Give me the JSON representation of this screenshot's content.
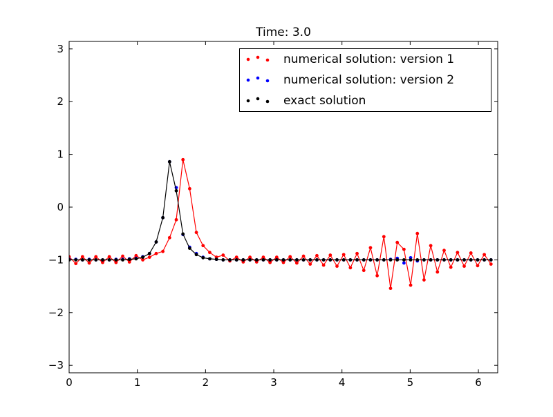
{
  "chart_data": {
    "type": "line",
    "title": "Time:  3.0",
    "xlabel": "",
    "ylabel": "",
    "xlim": [
      0,
      6.2832
    ],
    "ylim": [
      -3.1416,
      3.1416
    ],
    "grid": false,
    "legend_position": "top-right",
    "x_ticks": [
      0,
      1,
      2,
      3,
      4,
      5,
      6
    ],
    "x_tick_labels": [
      "0",
      "1",
      "2",
      "3",
      "4",
      "5",
      "6"
    ],
    "y_ticks": [
      -3,
      -2,
      -1,
      0,
      1,
      2,
      3
    ],
    "y_tick_labels": [
      "−3",
      "−2",
      "−1",
      "0",
      "1",
      "2",
      "3"
    ],
    "x": [
      0.0,
      0.0982,
      0.1963,
      0.2945,
      0.3927,
      0.4909,
      0.589,
      0.6872,
      0.7854,
      0.8836,
      0.9817,
      1.0799,
      1.1781,
      1.2763,
      1.3744,
      1.4726,
      1.5708,
      1.669,
      1.7671,
      1.8653,
      1.9635,
      2.0617,
      2.1598,
      2.258,
      2.3562,
      2.4544,
      2.5525,
      2.6507,
      2.7489,
      2.8471,
      2.9452,
      3.0434,
      3.1416,
      3.2398,
      3.3379,
      3.4361,
      3.5343,
      3.6325,
      3.7306,
      3.8288,
      3.927,
      4.0252,
      4.1233,
      4.2215,
      4.3197,
      4.4179,
      4.516,
      4.6142,
      4.7124,
      4.8106,
      4.9087,
      5.0069,
      5.1051,
      5.2033,
      5.3014,
      5.3996,
      5.4978,
      5.596,
      5.6941,
      5.7923,
      5.8905,
      5.9887,
      6.0868,
      6.185
    ],
    "series": [
      {
        "name": "numerical solution: version 1",
        "color": "#ff0000",
        "marker": "dot",
        "line": true,
        "values": [
          -0.94,
          -1.07,
          -0.94,
          -1.06,
          -0.94,
          -1.05,
          -0.94,
          -1.05,
          -0.93,
          -1.04,
          -0.92,
          -1.0,
          -0.95,
          -0.88,
          -0.84,
          -0.58,
          -0.24,
          0.9,
          0.35,
          -0.48,
          -0.73,
          -0.86,
          -0.95,
          -0.91,
          -1.02,
          -0.95,
          -1.04,
          -0.95,
          -1.04,
          -0.95,
          -1.05,
          -0.95,
          -1.05,
          -0.94,
          -1.06,
          -0.93,
          -1.08,
          -0.92,
          -1.1,
          -0.91,
          -1.12,
          -0.9,
          -1.15,
          -0.88,
          -1.2,
          -0.77,
          -1.3,
          -0.56,
          -1.54,
          -0.67,
          -0.8,
          -1.48,
          -0.5,
          -1.38,
          -0.73,
          -1.23,
          -0.82,
          -1.14,
          -0.86,
          -1.12,
          -0.87,
          -1.11,
          -0.9,
          -1.08
        ]
      },
      {
        "name": "numerical solution: version 2",
        "color": "#0000ff",
        "marker": "dot",
        "line": false,
        "values": [
          -0.99,
          -0.99,
          -1.0,
          -0.99,
          -1.0,
          -1.0,
          -1.0,
          -0.99,
          -0.99,
          -0.98,
          -0.97,
          -0.94,
          -0.88,
          -0.66,
          -0.2,
          0.86,
          0.37,
          -0.52,
          -0.76,
          -0.88,
          -0.95,
          -0.98,
          -0.99,
          -1.0,
          -1.0,
          -1.0,
          -1.0,
          -1.0,
          -1.0,
          -1.0,
          -1.0,
          -1.0,
          -1.0,
          -1.0,
          -1.0,
          -1.0,
          -1.0,
          -1.0,
          -1.0,
          -1.0,
          -1.0,
          -1.0,
          -1.0,
          -1.0,
          -1.0,
          -1.0,
          -1.0,
          -1.0,
          -0.99,
          -0.97,
          -1.06,
          -0.96,
          -1.02,
          -1.0,
          -1.0,
          -1.0,
          -1.0,
          -1.0,
          -1.0,
          -1.0,
          -1.0,
          -1.0,
          -1.0,
          -1.0
        ]
      },
      {
        "name": "exact solution",
        "color": "#000000",
        "marker": "dot",
        "line": true,
        "values": [
          -1.0,
          -1.0,
          -1.0,
          -1.0,
          -1.0,
          -1.0,
          -1.0,
          -1.0,
          -1.0,
          -0.99,
          -0.98,
          -0.95,
          -0.88,
          -0.66,
          -0.2,
          0.86,
          0.31,
          -0.51,
          -0.78,
          -0.9,
          -0.96,
          -0.98,
          -0.99,
          -1.0,
          -1.0,
          -1.0,
          -1.0,
          -1.0,
          -1.0,
          -1.0,
          -1.0,
          -1.0,
          -1.0,
          -1.0,
          -1.0,
          -1.0,
          -1.0,
          -1.0,
          -1.0,
          -1.0,
          -1.0,
          -1.0,
          -1.0,
          -1.0,
          -1.0,
          -1.0,
          -1.0,
          -1.0,
          -1.0,
          -1.0,
          -1.0,
          -1.0,
          -1.0,
          -1.0,
          -1.0,
          -1.0,
          -1.0,
          -1.0,
          -1.0,
          -1.0,
          -1.0,
          -1.0,
          -1.0,
          -1.0
        ]
      }
    ]
  }
}
